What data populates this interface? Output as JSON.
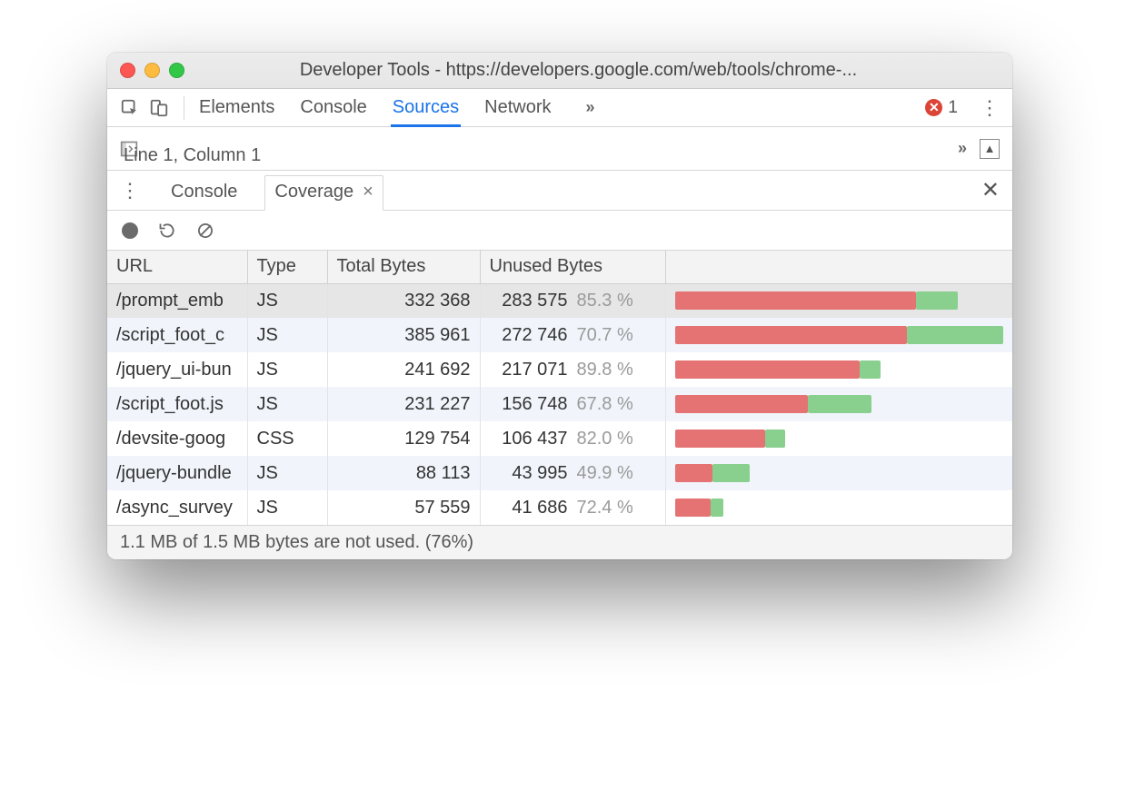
{
  "colors": {
    "unused": "#e57373",
    "used": "#89cf8e",
    "accent": "#1a73e8",
    "error": "#db4437",
    "muted_text": "#9a9a9a"
  },
  "window": {
    "title": "Developer Tools - https://developers.google.com/web/tools/chrome-..."
  },
  "main_toolbar": {
    "tabs": [
      "Elements",
      "Console",
      "Sources",
      "Network"
    ],
    "active_index": 2,
    "more_label": "»",
    "error_count": "1"
  },
  "sources": {
    "cursor": "Line 1, Column 1"
  },
  "drawer": {
    "tabs": [
      "Console",
      "Coverage"
    ],
    "active_index": 1,
    "close_tab_label": "×"
  },
  "coverage": {
    "columns": [
      "URL",
      "Type",
      "Total Bytes",
      "Unused Bytes"
    ],
    "max_total_bytes": 385961,
    "rows": [
      {
        "url": "/prompt_emb",
        "type": "JS",
        "total": "332 368",
        "total_n": 332368,
        "unused": "283 575",
        "pct": "85.3 %",
        "pct_n": 85.3,
        "selected": true
      },
      {
        "url": "/script_foot_c",
        "type": "JS",
        "total": "385 961",
        "total_n": 385961,
        "unused": "272 746",
        "pct": "70.7 %",
        "pct_n": 70.7
      },
      {
        "url": "/jquery_ui-bun",
        "type": "JS",
        "total": "241 692",
        "total_n": 241692,
        "unused": "217 071",
        "pct": "89.8 %",
        "pct_n": 89.8
      },
      {
        "url": "/script_foot.js",
        "type": "JS",
        "total": "231 227",
        "total_n": 231227,
        "unused": "156 748",
        "pct": "67.8 %",
        "pct_n": 67.8
      },
      {
        "url": "/devsite-goog",
        "type": "CSS",
        "total": "129 754",
        "total_n": 129754,
        "unused": "106 437",
        "pct": "82.0 %",
        "pct_n": 82.0
      },
      {
        "url": "/jquery-bundle",
        "type": "JS",
        "total": "88 113",
        "total_n": 88113,
        "unused": "43 995",
        "pct": "49.9 %",
        "pct_n": 49.9
      },
      {
        "url": "/async_survey",
        "type": "JS",
        "total": "57 559",
        "total_n": 57559,
        "unused": "41 686",
        "pct": "72.4 %",
        "pct_n": 72.4
      }
    ]
  },
  "status": {
    "text": "1.1 MB of 1.5 MB bytes are not used. (76%)"
  }
}
